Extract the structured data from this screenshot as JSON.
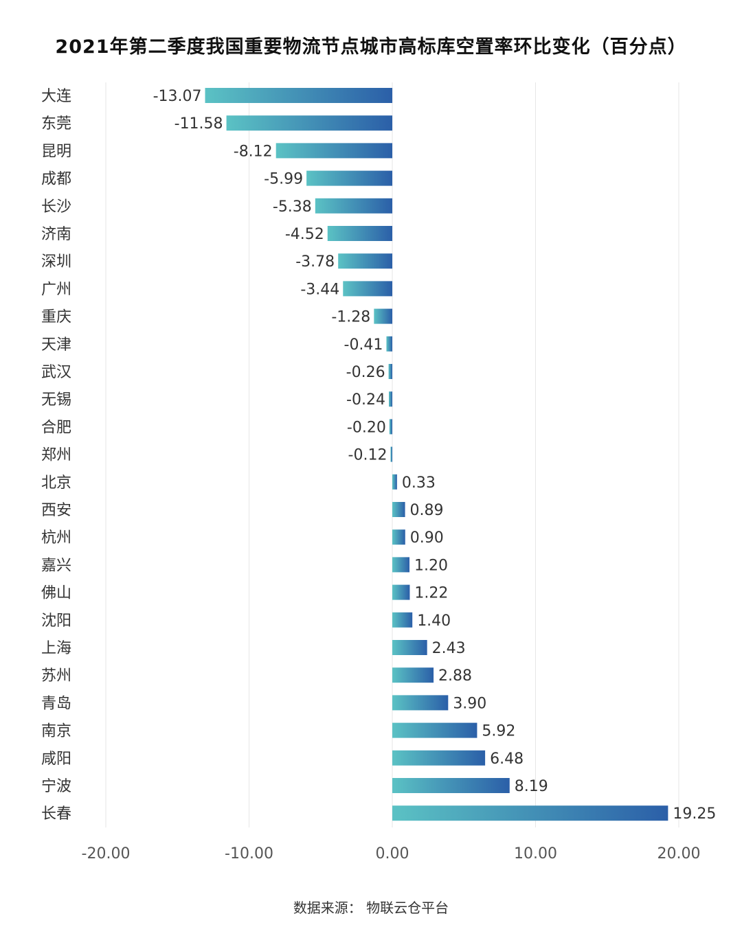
{
  "title": "2021年第二季度我国重要物流节点城市高标库空置率环比变化（百分点）",
  "source": "数据来源：  物联云仓平台",
  "colors": {
    "bar_start": "#5bc2c4",
    "bar_end": "#2b5fa8",
    "grid": "#e6e6e6",
    "text": "#333333"
  },
  "chart_data": {
    "type": "bar",
    "orientation": "horizontal",
    "title": "2021年第二季度我国重要物流节点城市高标库空置率环比变化（百分点）",
    "xlabel": "",
    "ylabel": "",
    "xlim": [
      -20,
      20
    ],
    "ticks": [
      -20,
      -10,
      0,
      10,
      20
    ],
    "tick_labels": [
      "-20.00",
      "-10.00",
      "0.00",
      "10.00",
      "20.00"
    ],
    "grid": true,
    "categories": [
      "大连",
      "东莞",
      "昆明",
      "成都",
      "长沙",
      "济南",
      "深圳",
      "广州",
      "重庆",
      "天津",
      "武汉",
      "无锡",
      "合肥",
      "郑州",
      "北京",
      "西安",
      "杭州",
      "嘉兴",
      "佛山",
      "沈阳",
      "上海",
      "苏州",
      "青岛",
      "南京",
      "咸阳",
      "宁波",
      "长春"
    ],
    "values": [
      -13.07,
      -11.58,
      -8.12,
      -5.99,
      -5.38,
      -4.52,
      -3.78,
      -3.44,
      -1.28,
      -0.41,
      -0.26,
      -0.24,
      -0.2,
      -0.12,
      0.33,
      0.89,
      0.9,
      1.2,
      1.22,
      1.4,
      2.43,
      2.88,
      3.9,
      5.92,
      6.48,
      8.19,
      19.25
    ],
    "value_labels": [
      "-13.07",
      "-11.58",
      "-8.12",
      "-5.99",
      "-5.38",
      "-4.52",
      "-3.78",
      "-3.44",
      "-1.28",
      "-0.41",
      "-0.26",
      "-0.24",
      "-0.20",
      "-0.12",
      "0.33",
      "0.89",
      "0.90",
      "1.20",
      "1.22",
      "1.40",
      "2.43",
      "2.88",
      "3.90",
      "5.92",
      "6.48",
      "8.19",
      "19.25"
    ]
  }
}
